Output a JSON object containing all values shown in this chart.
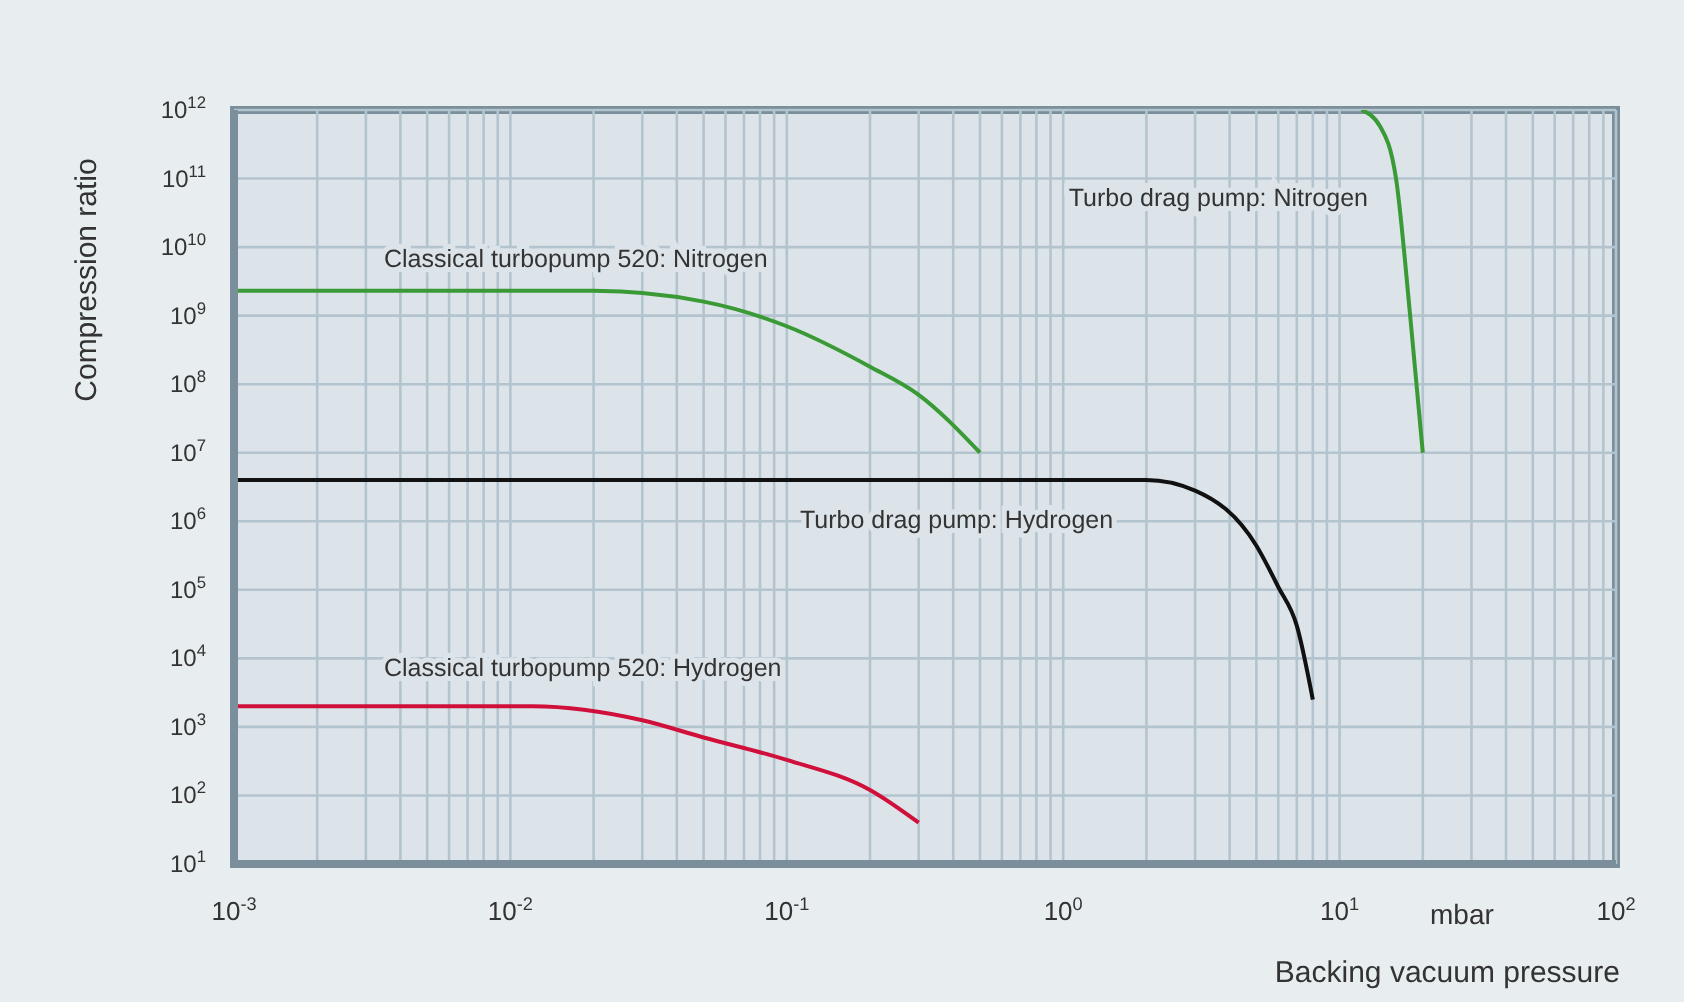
{
  "chart_data": {
    "type": "line",
    "xlabel": "Backing vacuum pressure",
    "ylabel": "Compression ratio",
    "annotations": [
      "mbar"
    ],
    "log": "xy",
    "grid": true,
    "marker": "none",
    "line_style": "solid",
    "xlim": [
      0.001,
      100
    ],
    "ylim": [
      10,
      1000000000000
    ],
    "xticks": [
      {
        "value": 0.001,
        "label": "10$^{-3}$"
      },
      {
        "value": 0.002,
        "label": null
      },
      {
        "value": 0.003,
        "label": null
      },
      {
        "value": 0.004,
        "label": null
      },
      {
        "value": 0.005,
        "label": null
      },
      {
        "value": 0.006,
        "label": null
      },
      {
        "value": 0.007,
        "label": null
      },
      {
        "value": 0.008,
        "label": null
      },
      {
        "value": 0.009,
        "label": null
      },
      {
        "value": 0.01,
        "label": "10$^{-2}$"
      },
      {
        "value": 0.02,
        "label": null
      },
      {
        "value": 0.03,
        "label": null
      },
      {
        "value": 0.04,
        "label": null
      },
      {
        "value": 0.05,
        "label": null
      },
      {
        "value": 0.06,
        "label": null
      },
      {
        "value": 0.07,
        "label": null
      },
      {
        "value": 0.08,
        "label": null
      },
      {
        "value": 0.09,
        "label": null
      },
      {
        "value": 0.1,
        "label": "10$^{-1}$"
      },
      {
        "value": 0.2,
        "label": null
      },
      {
        "value": 0.3,
        "label": null
      },
      {
        "value": 0.4,
        "label": null
      },
      {
        "value": 0.5,
        "label": null
      },
      {
        "value": 0.6,
        "label": null
      },
      {
        "value": 0.7,
        "label": null
      },
      {
        "value": 0.8,
        "label": null
      },
      {
        "value": 0.9,
        "label": null
      },
      {
        "value": 1,
        "label": "10$^{0}$"
      },
      {
        "value": 2,
        "label": null
      },
      {
        "value": 3,
        "label": null
      },
      {
        "value": 4,
        "label": null
      },
      {
        "value": 5,
        "label": null
      },
      {
        "value": 6,
        "label": null
      },
      {
        "value": 7,
        "label": null
      },
      {
        "value": 8,
        "label": null
      },
      {
        "value": 9,
        "label": null
      },
      {
        "value": 10,
        "label": "10$^{1}$"
      },
      {
        "value": 20,
        "label": null
      },
      {
        "value": 30,
        "label": null
      },
      {
        "value": 40,
        "label": null
      },
      {
        "value": 50,
        "label": null
      },
      {
        "value": 60,
        "label": null
      },
      {
        "value": 70,
        "label": null
      },
      {
        "value": 80,
        "label": null
      },
      {
        "value": 90,
        "label": null
      },
      {
        "value": 100,
        "label": "10$^{2}$"
      }
    ],
    "yticks": [
      {
        "value": 10,
        "label": "10$^{1}$"
      },
      {
        "value": 100,
        "label": "10$^{2}$"
      },
      {
        "value": 1000,
        "label": "10$^{3}$"
      },
      {
        "value": 10000,
        "label": "10$^{4}$"
      },
      {
        "value": 100000,
        "label": "10$^{5}$"
      },
      {
        "value": 1000000,
        "label": "10$^{6}$"
      },
      {
        "value": 10000000,
        "label": "10$^{7}$"
      },
      {
        "value": 100000000,
        "label": "10$^{8}$"
      },
      {
        "value": 1000000000,
        "label": "10$^{9}$"
      },
      {
        "value": 10000000000,
        "label": "10$^{10}$"
      },
      {
        "value": 100000000000,
        "label": "10$^{11}$"
      },
      {
        "value": 1000000000000,
        "label": "10$^{12}$"
      }
    ],
    "series": [
      {
        "name": "Classical turbopump 520: Nitrogen",
        "color": "#3a9a35",
        "x": [
          0.001,
          0.02,
          0.05,
          0.1,
          0.2,
          0.3,
          0.5
        ],
        "values": [
          2300000000,
          2300000000,
          1600000000,
          700000000,
          180000000,
          70000000,
          10000000
        ]
      },
      {
        "name": "Turbo drag pump: Hydrogen",
        "color": "#111111",
        "x": [
          0.001,
          2,
          3,
          5,
          6,
          7,
          8
        ],
        "values": [
          4000000,
          4000000,
          2800000,
          440000,
          110000,
          30000,
          2500
        ]
      },
      {
        "name": "Turbo drag pump: Nitrogen",
        "color": "#3a9a35",
        "x": [
          12,
          14,
          16,
          18,
          20
        ],
        "values": [
          1000000000000,
          580000000000,
          100000000000,
          1000000000,
          10000000
        ]
      },
      {
        "name": "Classical turbopump 520: Hydrogen",
        "color": "#d0103a",
        "x": [
          0.001,
          0.012,
          0.03,
          0.05,
          0.1,
          0.2,
          0.3
        ],
        "values": [
          2000,
          2000,
          1250,
          700,
          330,
          120,
          40
        ]
      }
    ]
  }
}
